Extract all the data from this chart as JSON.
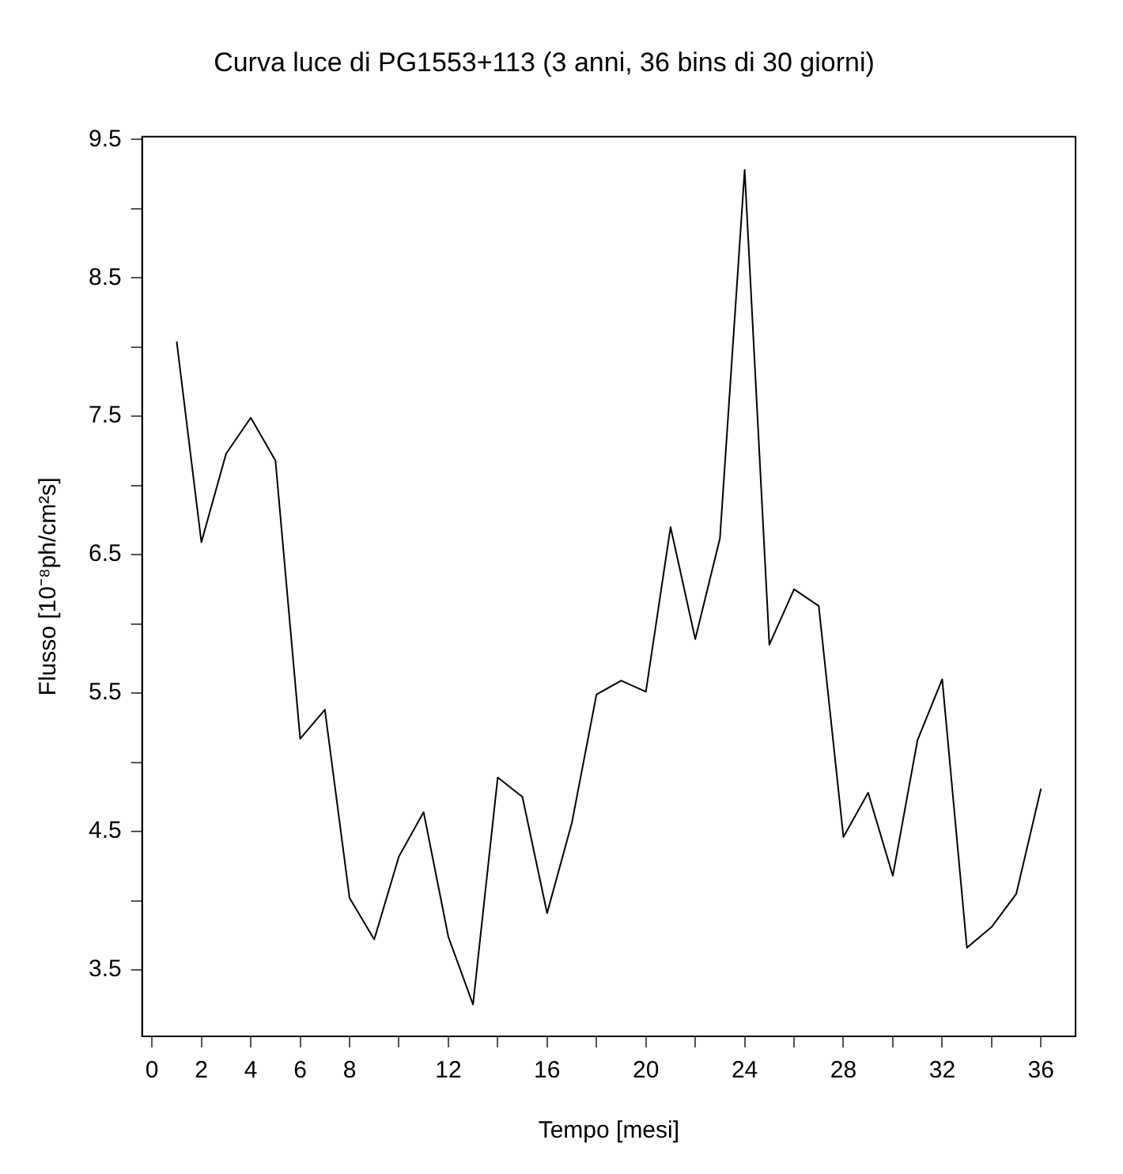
{
  "chart_data": {
    "type": "line",
    "title": "Curva luce di PG1553+113 (3 anni, 36 bins di 30 giorni)",
    "xlabel": "Tempo [mesi]",
    "ylabel": "Flusso [10⁻⁸ph/cm²s]",
    "x": [
      1,
      2,
      3,
      4,
      5,
      6,
      7,
      8,
      9,
      10,
      11,
      12,
      13,
      14,
      15,
      16,
      17,
      18,
      19,
      20,
      21,
      22,
      23,
      24,
      25,
      26,
      27,
      28,
      29,
      30,
      31,
      32,
      33,
      34,
      35,
      36
    ],
    "series": [
      {
        "color": "#000000",
        "values": [
          8.04,
          6.59,
          7.23,
          7.49,
          7.18,
          5.17,
          5.38,
          4.02,
          3.72,
          4.32,
          4.64,
          3.74,
          3.25,
          4.89,
          4.75,
          3.91,
          4.56,
          5.49,
          5.59,
          5.51,
          6.7,
          5.89,
          6.62,
          9.28,
          5.85,
          6.25,
          6.13,
          4.46,
          4.78,
          4.18,
          5.16,
          5.6,
          3.66,
          3.81,
          4.05,
          4.81
        ]
      }
    ],
    "xlim": [
      -0.4,
      37.4
    ],
    "ylim": [
      3.02,
      9.52
    ],
    "xticks": [
      0,
      2,
      4,
      6,
      8,
      {
        "value": 10,
        "label": null
      },
      12,
      {
        "value": 14,
        "label": null
      },
      16,
      {
        "value": 18,
        "label": null
      },
      20,
      {
        "value": 22,
        "label": null
      },
      24,
      {
        "value": 26,
        "label": null
      },
      28,
      {
        "value": 30,
        "label": null
      },
      32,
      {
        "value": 34,
        "label": null
      },
      36
    ],
    "yticks": [
      3.5,
      {
        "value": 4,
        "label": null
      },
      4.5,
      {
        "value": 5,
        "label": null
      },
      5.5,
      {
        "value": 6,
        "label": null
      },
      6.5,
      {
        "value": 7,
        "label": null
      },
      7.5,
      {
        "value": 8,
        "label": null
      },
      8.5,
      {
        "value": 9,
        "label": null
      },
      9.5
    ],
    "grid": false,
    "legend": false,
    "marker": "none",
    "line_style": "solid"
  }
}
